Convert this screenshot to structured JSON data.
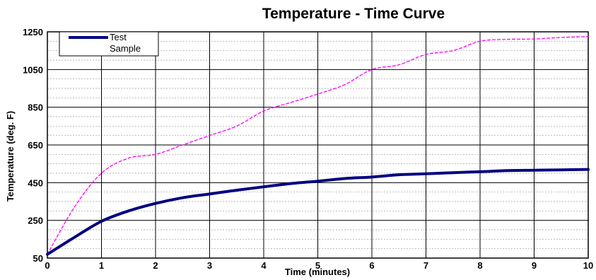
{
  "chart_data": {
    "type": "line",
    "title": "Temperature - Time Curve",
    "xlabel": "Time (minutes)",
    "ylabel": "Temperature (deg. F)",
    "xlim": [
      0,
      10
    ],
    "ylim": [
      50,
      1250
    ],
    "xticks": [
      0,
      1,
      2,
      3,
      4,
      5,
      6,
      7,
      8,
      9,
      10
    ],
    "yticks": [
      50,
      250,
      450,
      650,
      850,
      1050,
      1250
    ],
    "grid": true,
    "legend": "top-left",
    "series": [
      {
        "name": "Test Sample",
        "color": "#000080",
        "style": "solid",
        "points": [
          [
            0,
            70
          ],
          [
            0.5,
            160
          ],
          [
            1,
            245
          ],
          [
            1.5,
            300
          ],
          [
            2,
            340
          ],
          [
            2.5,
            370
          ],
          [
            3,
            390
          ],
          [
            3.5,
            410
          ],
          [
            4,
            428
          ],
          [
            4.5,
            445
          ],
          [
            5,
            458
          ],
          [
            5.5,
            472
          ],
          [
            6,
            480
          ],
          [
            6.5,
            492
          ],
          [
            7,
            497
          ],
          [
            7.5,
            503
          ],
          [
            8,
            508
          ],
          [
            8.5,
            514
          ],
          [
            9,
            516
          ],
          [
            9.5,
            518
          ],
          [
            10,
            520
          ]
        ]
      },
      {
        "name": "",
        "color": "#ff00ff",
        "style": "dashed",
        "points": [
          [
            0,
            70
          ],
          [
            0.5,
            320
          ],
          [
            1,
            500
          ],
          [
            1.5,
            580
          ],
          [
            2,
            600
          ],
          [
            2.5,
            650
          ],
          [
            3,
            700
          ],
          [
            3.5,
            750
          ],
          [
            4,
            830
          ],
          [
            4.5,
            875
          ],
          [
            5,
            920
          ],
          [
            5.5,
            970
          ],
          [
            6,
            1050
          ],
          [
            6.5,
            1075
          ],
          [
            7,
            1130
          ],
          [
            7.5,
            1150
          ],
          [
            8,
            1200
          ],
          [
            8.5,
            1210
          ],
          [
            9,
            1212
          ],
          [
            9.5,
            1220
          ],
          [
            10,
            1225
          ]
        ]
      }
    ],
    "legend_entries": [
      "Test",
      "Sample"
    ]
  }
}
